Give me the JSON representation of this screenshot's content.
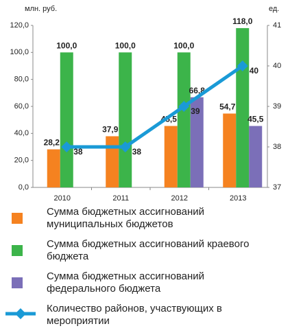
{
  "chart_data": {
    "type": "bar",
    "ylabel": "млн. руб.",
    "y2label": "ед.",
    "categories": [
      "2010",
      "2011",
      "2012",
      "2013"
    ],
    "series": [
      {
        "name": "Сумма бюджетных ассигнований муниципальных бюджетов",
        "color": "#f58220",
        "values": [
          28.2,
          37.9,
          45.5,
          54.7
        ],
        "value_labels": [
          "28,2",
          "37,9",
          "45,5",
          "54,7"
        ]
      },
      {
        "name": "Сумма бюджетных ассигнований краевого бюджета",
        "color": "#3cb44a",
        "values": [
          100,
          100,
          100,
          118
        ],
        "value_labels": [
          "100,0",
          "100,0",
          "100,0",
          "118,0"
        ]
      },
      {
        "name": "Сумма бюджетных ассигнований федерального бюджета",
        "color": "#7b6fb8",
        "values": [
          null,
          null,
          66.8,
          45.5
        ],
        "value_labels": [
          null,
          null,
          "66,8",
          "45,5"
        ]
      },
      {
        "name": "Количество районов, участвующих в мероприятии",
        "color": "#1a9ad6",
        "type": "line",
        "axis": "y2",
        "values": [
          38,
          38,
          39,
          40
        ]
      }
    ],
    "ylim": [
      0,
      120
    ],
    "yticks": [
      {
        "value": 0,
        "label": "0,0"
      },
      {
        "value": 20,
        "label": "20,0"
      },
      {
        "value": 40,
        "label": "40,0"
      },
      {
        "value": 60,
        "label": "60,0"
      },
      {
        "value": 80,
        "label": "80,0"
      },
      {
        "value": 100,
        "label": "100,0"
      },
      {
        "value": 120,
        "label": "120,0"
      }
    ],
    "y2lim": [
      37,
      41
    ],
    "y2ticks": [
      37,
      38,
      39,
      40,
      41
    ]
  }
}
